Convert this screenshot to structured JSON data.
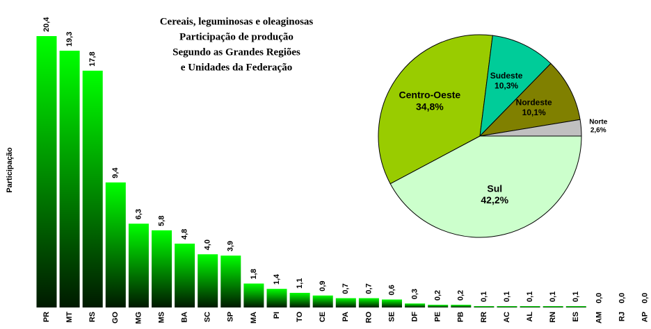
{
  "chart_data": [
    {
      "type": "bar",
      "title": [
        "Cereais, leguminosas e oleaginosas",
        "Participação de produção",
        "Segundo as Grandes Regiões",
        "e Unidades da Federação"
      ],
      "y_label": "Participação",
      "categories": [
        "PR",
        "MT",
        "RS",
        "GO",
        "MG",
        "MS",
        "BA",
        "SC",
        "SP",
        "MA",
        "PI",
        "TO",
        "CE",
        "PA",
        "RO",
        "SE",
        "DF",
        "PE",
        "PB",
        "RR",
        "AC",
        "AL",
        "RN",
        "ES",
        "AM",
        "RJ",
        "AP"
      ],
      "values": [
        20.4,
        19.3,
        17.8,
        9.4,
        6.3,
        5.8,
        4.8,
        4.0,
        3.9,
        1.8,
        1.4,
        1.1,
        0.9,
        0.7,
        0.7,
        0.6,
        0.3,
        0.2,
        0.2,
        0.1,
        0.1,
        0.1,
        0.1,
        0.1,
        0.0,
        0.0,
        0.0
      ],
      "value_labels": [
        "20,4",
        "19,3",
        "17,8",
        "9,4",
        "6,3",
        "5,8",
        "4,8",
        "4,0",
        "3,9",
        "1,8",
        "1,4",
        "1,1",
        "0,9",
        "0,7",
        "0,7",
        "0,6",
        "0,3",
        "0,2",
        "0,2",
        "0,1",
        "0,1",
        "0,1",
        "0,1",
        "0,1",
        "0,0",
        "0,0",
        "0,0"
      ],
      "color": "#00ff00",
      "ylim": [
        0,
        20.4
      ]
    },
    {
      "type": "pie",
      "categories": [
        "Sul",
        "Centro-Oeste",
        "Sudeste",
        "Nordeste",
        "Norte"
      ],
      "values": [
        42.2,
        34.8,
        10.3,
        10.1,
        2.6
      ],
      "value_labels": [
        "42,2%",
        "34,8%",
        "10,3%",
        "10,1%",
        "2,6%"
      ],
      "colors": [
        "#ccffcc",
        "#99cc00",
        "#00cc99",
        "#808000",
        "#c0c0c0"
      ]
    }
  ]
}
